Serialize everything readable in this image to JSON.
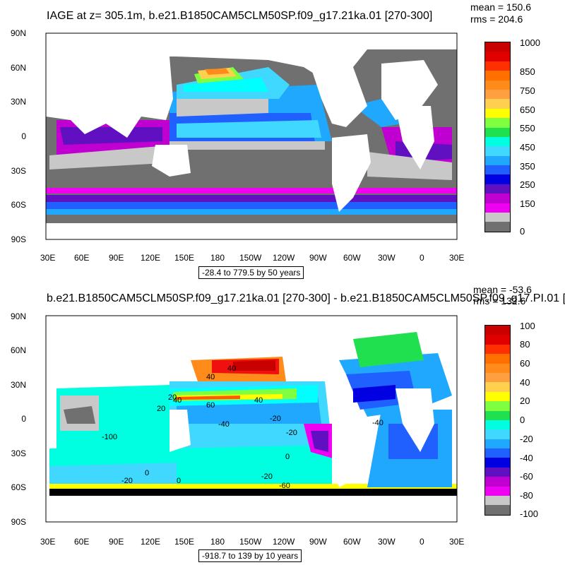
{
  "panel1": {
    "title": "IAGE at z= 305.1m, b.e21.B1850CAM5CLM50SP.f09_g17.21ka.01 [270-300]",
    "mean": "mean = 150.6",
    "rms": "rms = 204.6",
    "range": "-28.4 to 779.5 by 50 years",
    "colorbar_labels": [
      "1000",
      "850",
      "750",
      "650",
      "550",
      "450",
      "350",
      "250",
      "150",
      "0"
    ],
    "colorbar_colors": [
      "#c80000",
      "#f01010",
      "#ff5a00",
      "#ff8c1a",
      "#ffb040",
      "#ffd050",
      "#ffff00",
      "#80ff40",
      "#20e050",
      "#00ffe0",
      "#00ffff",
      "#40d8ff",
      "#20a8ff",
      "#2060ff",
      "#0000e0",
      "#6010c0",
      "#c000d0",
      "#f000f0",
      "#c8c8c8",
      "#707070"
    ]
  },
  "panel2": {
    "title": "b.e21.B1850CAM5CLM50SP.f09_g17.21ka.01 [270-300] - b.e21.B1850CAM5CLM50SP.f09_g17.PI.01 [",
    "mean": "mean = -53.6",
    "rms": "rms = 132.6",
    "range": "-918.7 to 139 by 10 years",
    "colorbar_labels": [
      "100",
      "80",
      "60",
      "40",
      "20",
      "0",
      "-20",
      "-40",
      "-60",
      "-80",
      "-100"
    ],
    "colorbar_colors": [
      "#c80000",
      "#f01010",
      "#ff5a00",
      "#ff8c1a",
      "#ffb040",
      "#ffd050",
      "#ffff00",
      "#80ff40",
      "#20e050",
      "#00ffe0",
      "#00ffff",
      "#40d8ff",
      "#20a8ff",
      "#2060ff",
      "#0000e0",
      "#6010c0",
      "#c000d0",
      "#f000f0",
      "#c8c8c8",
      "#707070"
    ],
    "contour_labels": [
      "40",
      "40",
      "20",
      "20",
      "40",
      "60",
      "40",
      "-40",
      "-20",
      "-20",
      "-100",
      "0",
      "0",
      "-20",
      "-20",
      "0",
      "-60",
      "-40"
    ]
  },
  "lat_labels": [
    "90N",
    "60N",
    "30N",
    "0",
    "30S",
    "60S",
    "90S"
  ],
  "lon_labels": [
    "30E",
    "60E",
    "90E",
    "120E",
    "150E",
    "180",
    "150W",
    "120W",
    "90W",
    "60W",
    "30W",
    "0",
    "30E"
  ],
  "colors": {
    "land": "#ffffff",
    "frame": "#000000"
  }
}
